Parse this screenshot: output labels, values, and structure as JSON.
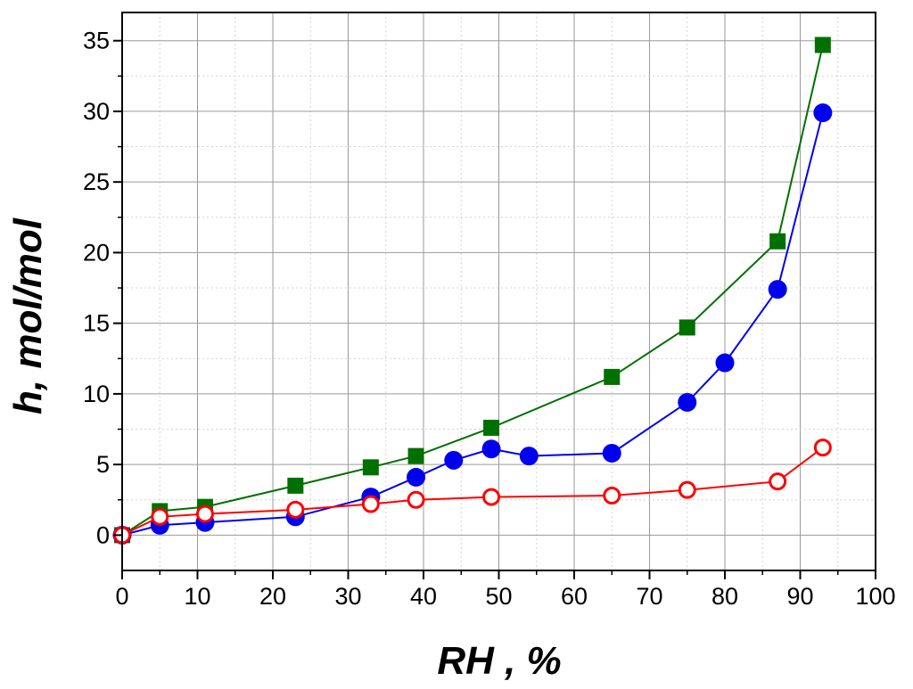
{
  "chart_data": {
    "type": "line",
    "title": "",
    "xlabel": "RH , %",
    "ylabel": "h, mol/mol",
    "xlim": [
      0,
      100
    ],
    "ylim": [
      -2.5,
      37
    ],
    "x_ticks": [
      0,
      10,
      20,
      30,
      40,
      50,
      60,
      70,
      80,
      90,
      100
    ],
    "y_ticks": [
      0,
      5,
      10,
      15,
      20,
      25,
      30,
      35
    ],
    "grid": true,
    "legend": "none",
    "series": [
      {
        "color": "#007000",
        "marker": "square-filled",
        "x": [
          0,
          5,
          11,
          23,
          33,
          39,
          49,
          65,
          75,
          87,
          93
        ],
        "y": [
          0,
          1.7,
          2.0,
          3.5,
          4.8,
          5.6,
          7.6,
          11.2,
          14.7,
          20.8,
          34.7
        ]
      },
      {
        "color": "#0000ee",
        "marker": "circle-filled",
        "x": [
          0,
          5,
          11,
          23,
          33,
          39,
          44,
          49,
          54,
          65,
          75,
          80,
          87,
          93
        ],
        "y": [
          0,
          0.7,
          0.9,
          1.3,
          2.7,
          4.1,
          5.3,
          6.1,
          5.6,
          5.8,
          9.4,
          12.2,
          17.4,
          29.9
        ]
      },
      {
        "color": "#ff0000",
        "marker": "circle-open",
        "x": [
          0,
          5,
          11,
          23,
          33,
          39,
          49,
          65,
          75,
          87,
          93
        ],
        "y": [
          0,
          1.3,
          1.5,
          1.8,
          2.2,
          2.5,
          2.7,
          2.8,
          3.2,
          3.8,
          6.2
        ]
      }
    ]
  }
}
